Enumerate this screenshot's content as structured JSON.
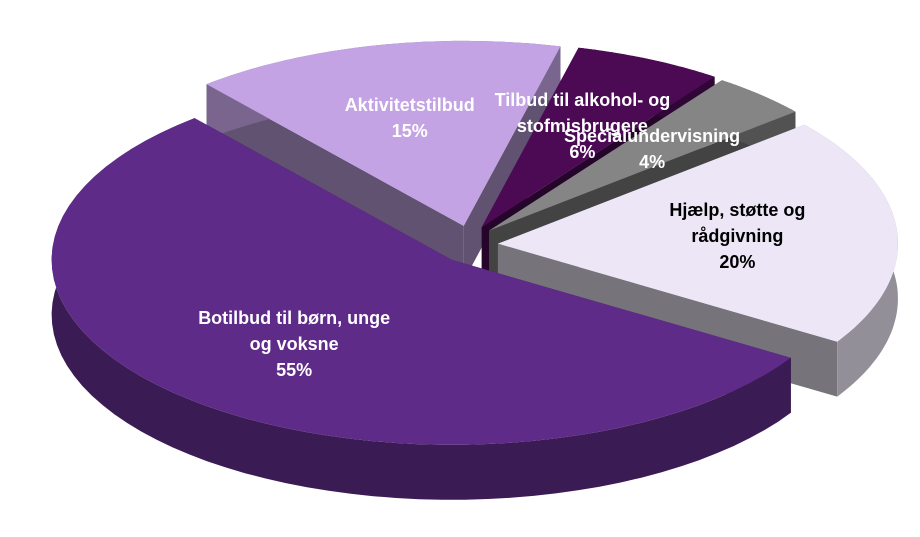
{
  "chart_data": {
    "type": "pie",
    "categories": [
      "Aktivitetstilbud",
      "Tilbud til alkohol- og stofmisbrugere",
      "Specialundervisning",
      "Hjælp, støtte og rådgivning",
      "Botilbud til børn, unge og voksne"
    ],
    "values": [
      15,
      6,
      4,
      20,
      55
    ],
    "value_labels": [
      "15%",
      "6%",
      "4%",
      "20%",
      "55%"
    ],
    "colors": [
      "#c3a3e3",
      "#4c0a55",
      "#858585",
      "#ece6f6",
      "#5f2b88"
    ]
  }
}
